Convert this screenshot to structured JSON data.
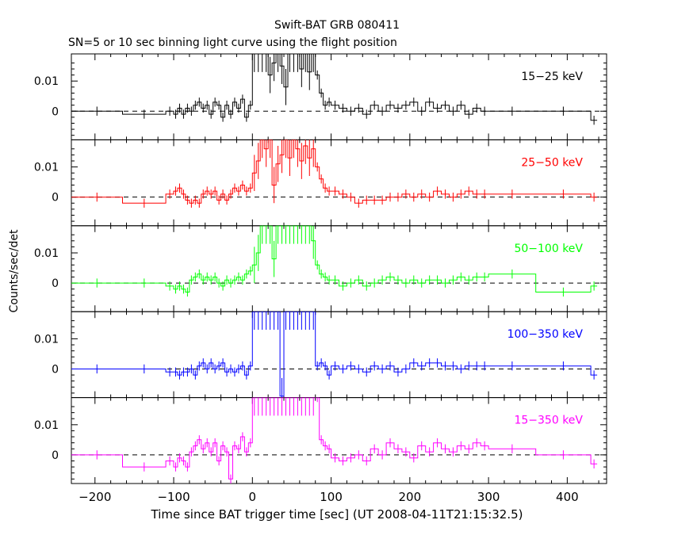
{
  "title": "Swift-BAT GRB 080411",
  "subtitle": "SN=5 or 10 sec binning light curve using the flight position",
  "ylabel": "Counts/sec/det",
  "xlabel": "Time since BAT trigger time [sec] (UT 2008-04-11T21:15:32.5)",
  "chart_data": {
    "type": "line",
    "xlim": [
      -230,
      450
    ],
    "ylim": [
      -0.0095,
      0.019
    ],
    "xticks": [
      -200,
      -100,
      0,
      100,
      200,
      300,
      400
    ],
    "xtick_labels": [
      "−200",
      "−100",
      "0",
      "100",
      "200",
      "300",
      "400"
    ],
    "yticks": [
      0,
      0.01
    ],
    "ytick_labels": [
      "0",
      "0.01"
    ],
    "zero_line": "dashed",
    "series": [
      {
        "name": "15−25 keV",
        "color": "#000000",
        "x": [
          -230,
          -165,
          -110,
          -100,
          -95,
          -90,
          -85,
          -80,
          -75,
          -70,
          -65,
          -60,
          -55,
          -50,
          -45,
          -40,
          -35,
          -30,
          -25,
          -20,
          -15,
          -10,
          -5,
          0,
          5,
          10,
          15,
          20,
          25,
          30,
          35,
          40,
          45,
          50,
          55,
          60,
          65,
          70,
          75,
          80,
          85,
          90,
          95,
          100,
          110,
          120,
          130,
          140,
          150,
          160,
          170,
          180,
          190,
          200,
          210,
          220,
          230,
          240,
          250,
          260,
          270,
          280,
          290,
          300,
          360,
          430
        ],
        "y": [
          0,
          -0.001,
          0,
          -0.001,
          0.001,
          -0.001,
          0.001,
          0,
          0.002,
          0.003,
          0.001,
          0.002,
          -0.001,
          0.003,
          0.002,
          -0.002,
          0.002,
          -0.001,
          0.003,
          0.001,
          0.004,
          -0.002,
          0.002,
          0.019,
          0.019,
          0.019,
          0.019,
          0.012,
          0.016,
          0.019,
          0.015,
          0.008,
          0.019,
          0.019,
          0.019,
          0.014,
          0.019,
          0.013,
          0.019,
          0.012,
          0.006,
          0.002,
          0.003,
          0.002,
          0.001,
          0,
          0.001,
          -0.001,
          0.002,
          0,
          0.002,
          0.001,
          0.002,
          0.003,
          0,
          0.003,
          0.001,
          0.002,
          0,
          0.002,
          -0.001,
          0.001,
          0,
          0,
          0,
          -0.003
        ]
      },
      {
        "name": "25−50 keV",
        "color": "#ff0000",
        "x": [
          -230,
          -165,
          -110,
          -100,
          -95,
          -90,
          -85,
          -80,
          -75,
          -70,
          -65,
          -60,
          -55,
          -50,
          -45,
          -40,
          -35,
          -30,
          -25,
          -20,
          -15,
          -10,
          -5,
          0,
          5,
          10,
          15,
          20,
          25,
          30,
          35,
          40,
          45,
          50,
          55,
          60,
          65,
          70,
          75,
          80,
          85,
          90,
          95,
          100,
          110,
          120,
          130,
          140,
          150,
          160,
          170,
          180,
          190,
          200,
          210,
          220,
          230,
          240,
          250,
          260,
          270,
          280,
          290,
          300,
          360,
          430
        ],
        "y": [
          0,
          -0.002,
          0.001,
          0.002,
          0.003,
          0.001,
          -0.001,
          -0.002,
          -0.001,
          -0.002,
          0.001,
          0.002,
          0.001,
          0.002,
          -0.001,
          0.001,
          -0.001,
          0.001,
          0.003,
          0.002,
          0.004,
          0.002,
          0.003,
          0.008,
          0.012,
          0.019,
          0.016,
          0.019,
          0.004,
          0.011,
          0.014,
          0.019,
          0.013,
          0.019,
          0.016,
          0.012,
          0.017,
          0.013,
          0.016,
          0.01,
          0.006,
          0.003,
          0.002,
          0.002,
          0.001,
          0,
          -0.002,
          -0.001,
          -0.001,
          -0.001,
          0,
          0,
          0.001,
          0,
          0.001,
          0,
          0.002,
          0.001,
          0,
          0.001,
          0.002,
          0.001,
          0.001,
          0.001,
          0.001,
          0
        ]
      },
      {
        "name": "50−100 keV",
        "color": "#00ff00",
        "x": [
          -230,
          -165,
          -110,
          -100,
          -95,
          -90,
          -85,
          -80,
          -75,
          -70,
          -65,
          -60,
          -55,
          -50,
          -45,
          -40,
          -35,
          -30,
          -25,
          -20,
          -15,
          -10,
          -5,
          0,
          5,
          10,
          15,
          20,
          25,
          30,
          35,
          40,
          45,
          50,
          55,
          60,
          65,
          70,
          75,
          80,
          85,
          90,
          95,
          100,
          110,
          120,
          130,
          140,
          150,
          160,
          170,
          180,
          190,
          200,
          210,
          220,
          230,
          240,
          250,
          260,
          270,
          280,
          290,
          300,
          360,
          430
        ],
        "y": [
          0,
          0,
          -0.001,
          -0.002,
          -0.001,
          -0.002,
          -0.003,
          0.001,
          0.002,
          0.003,
          0.001,
          0.002,
          0.001,
          0.002,
          0,
          -0.001,
          0.001,
          0,
          0.001,
          0.002,
          0.001,
          0.003,
          0.004,
          0.006,
          0.01,
          0.019,
          0.019,
          0.019,
          0.008,
          0.019,
          0.019,
          0.019,
          0.019,
          0.019,
          0.019,
          0.019,
          0.019,
          0.019,
          0.014,
          0.006,
          0.003,
          0.002,
          0.001,
          0.001,
          -0.001,
          0,
          0.001,
          -0.001,
          0,
          0.001,
          0.002,
          0.001,
          0,
          0.001,
          0,
          0.001,
          0.001,
          0,
          0.001,
          0.002,
          0.001,
          0.002,
          0.002,
          0.003,
          -0.003,
          -0.001
        ]
      },
      {
        "name": "100−350 keV",
        "color": "#0000ff",
        "x": [
          -230,
          -165,
          -110,
          -100,
          -95,
          -90,
          -85,
          -80,
          -75,
          -70,
          -65,
          -60,
          -55,
          -50,
          -45,
          -40,
          -35,
          -30,
          -25,
          -20,
          -15,
          -10,
          -5,
          0,
          5,
          10,
          15,
          20,
          25,
          30,
          35,
          40,
          45,
          50,
          55,
          60,
          65,
          70,
          75,
          80,
          85,
          90,
          95,
          100,
          110,
          120,
          130,
          140,
          150,
          160,
          170,
          180,
          190,
          200,
          210,
          220,
          230,
          240,
          250,
          260,
          270,
          280,
          290,
          300,
          360,
          430
        ],
        "y": [
          0,
          0,
          -0.001,
          -0.001,
          -0.002,
          -0.001,
          -0.001,
          0,
          -0.002,
          0.001,
          0.002,
          0,
          0.002,
          0,
          0.001,
          0.002,
          -0.001,
          0,
          -0.001,
          0,
          0.001,
          -0.002,
          0.001,
          0.019,
          0.019,
          0.019,
          0.019,
          0.019,
          0.019,
          0.019,
          -0.009,
          0.019,
          0.019,
          0.019,
          0.019,
          0.019,
          0.019,
          0.019,
          0.019,
          0.001,
          0.002,
          0.001,
          -0.002,
          0.001,
          0,
          0.001,
          0,
          -0.001,
          0.001,
          0,
          0.001,
          -0.001,
          0,
          0.002,
          0.001,
          0.002,
          0.002,
          0.001,
          0.001,
          0,
          0.001,
          0.001,
          0.001,
          0.001,
          0.001,
          -0.002
        ]
      },
      {
        "name": "15−350 keV",
        "color": "#ff00ff",
        "x": [
          -230,
          -165,
          -110,
          -100,
          -95,
          -90,
          -85,
          -80,
          -75,
          -70,
          -65,
          -60,
          -55,
          -50,
          -45,
          -40,
          -35,
          -30,
          -25,
          -20,
          -15,
          -10,
          -5,
          0,
          5,
          10,
          15,
          20,
          25,
          30,
          35,
          40,
          45,
          50,
          55,
          60,
          65,
          70,
          75,
          80,
          85,
          90,
          95,
          100,
          110,
          120,
          130,
          140,
          150,
          160,
          170,
          180,
          190,
          200,
          210,
          220,
          230,
          240,
          250,
          260,
          270,
          280,
          290,
          300,
          360,
          430
        ],
        "y": [
          0,
          -0.004,
          -0.002,
          -0.004,
          -0.001,
          -0.002,
          -0.004,
          0.001,
          0.003,
          0.005,
          0.002,
          0.004,
          0.001,
          0.004,
          -0.002,
          0.003,
          0.001,
          -0.008,
          0.003,
          0.002,
          0.006,
          0.001,
          0.004,
          0.019,
          0.019,
          0.019,
          0.019,
          0.019,
          0.019,
          0.019,
          0.019,
          0.019,
          0.019,
          0.019,
          0.019,
          0.019,
          0.019,
          0.019,
          0.019,
          0.019,
          0.005,
          0.003,
          0.002,
          -0.001,
          -0.002,
          -0.001,
          0,
          -0.002,
          0.002,
          0,
          0.004,
          0.002,
          0.001,
          -0.001,
          0.003,
          0.001,
          0.004,
          0.002,
          0.001,
          0.003,
          0.002,
          0.004,
          0.003,
          0.002,
          0,
          -0.003
        ]
      }
    ]
  }
}
